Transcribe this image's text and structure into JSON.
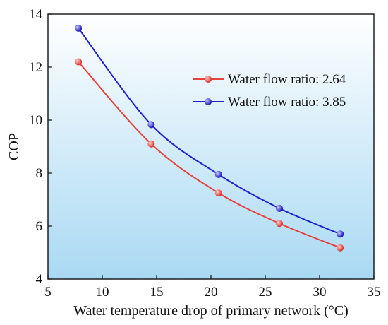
{
  "chart_data": {
    "type": "line",
    "title": "",
    "xlabel": "Water temperature drop of primary network (°C)",
    "ylabel": "COP",
    "xlim": [
      5,
      35
    ],
    "ylim": [
      4,
      14
    ],
    "xticks": [
      5,
      10,
      15,
      20,
      25,
      30,
      35
    ],
    "yticks": [
      4,
      6,
      8,
      10,
      12,
      14
    ],
    "grid": false,
    "legend_position": "upper-right",
    "background": "light-blue-gradient",
    "series": [
      {
        "name": "Water flow ratio: 2.64",
        "color": "#e8413c",
        "x": [
          7.8,
          14.5,
          20.7,
          26.3,
          31.9
        ],
        "y": [
          12.2,
          9.1,
          7.25,
          6.1,
          5.18
        ]
      },
      {
        "name": "Water flow ratio: 3.85",
        "color": "#1f1fd6",
        "x": [
          7.8,
          14.5,
          20.7,
          26.3,
          31.9
        ],
        "y": [
          13.47,
          9.83,
          7.95,
          6.67,
          5.7
        ]
      }
    ]
  }
}
